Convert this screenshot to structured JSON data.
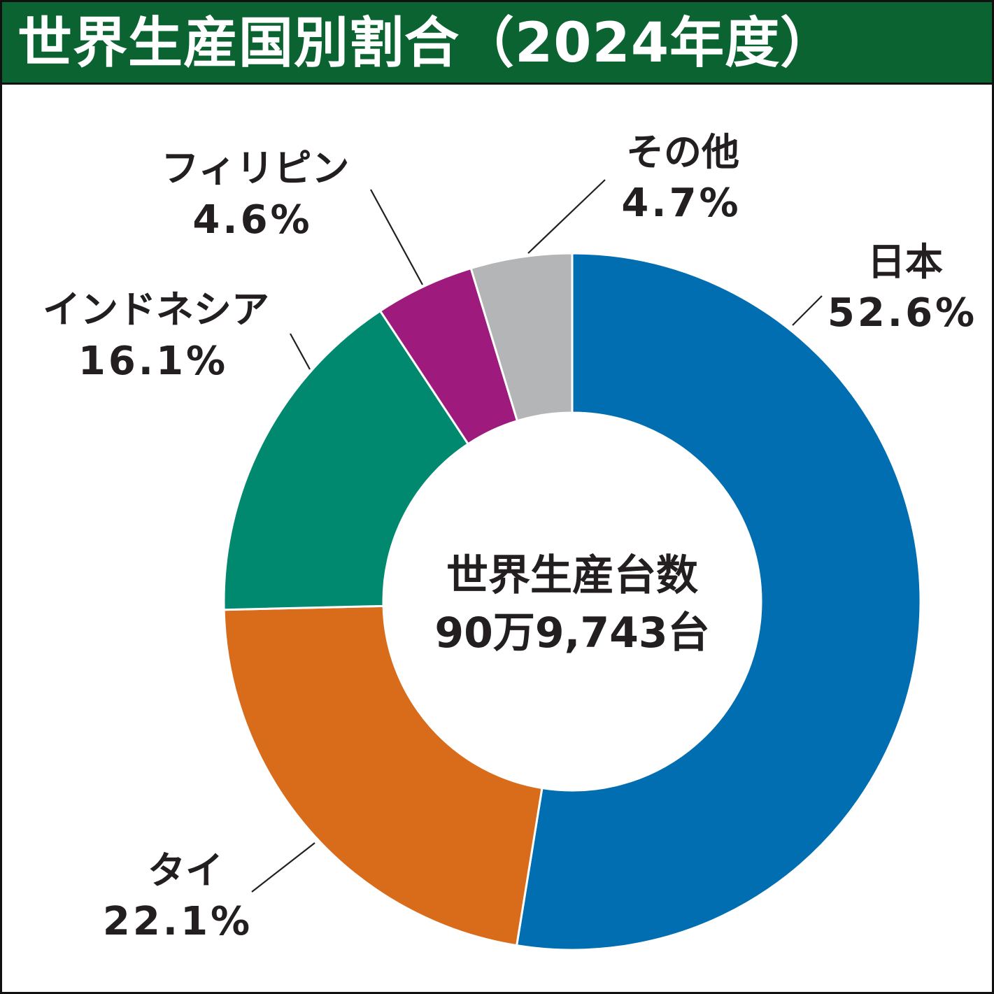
{
  "title": "世界生産国別割合（2024年度）",
  "colors": {
    "title_bar": "#0a6330",
    "text": "#231f20"
  },
  "center": {
    "line1": "世界生産台数",
    "line2": "90万9,743台"
  },
  "chart_data": {
    "type": "pie",
    "donut": true,
    "unit": "%",
    "start": "12 o'clock",
    "direction": "clockwise",
    "categories": [
      "日本",
      "タイ",
      "インドネシア",
      "フィリピン",
      "その他"
    ],
    "values": [
      52.6,
      22.1,
      16.1,
      4.6,
      4.7
    ],
    "value_labels": [
      "52.6%",
      "22.1%",
      "16.1%",
      "4.6%",
      "4.7%"
    ],
    "colors": [
      "#006eb0",
      "#d86c1a",
      "#00896f",
      "#9e1a7d",
      "#b4b5b7"
    ]
  }
}
